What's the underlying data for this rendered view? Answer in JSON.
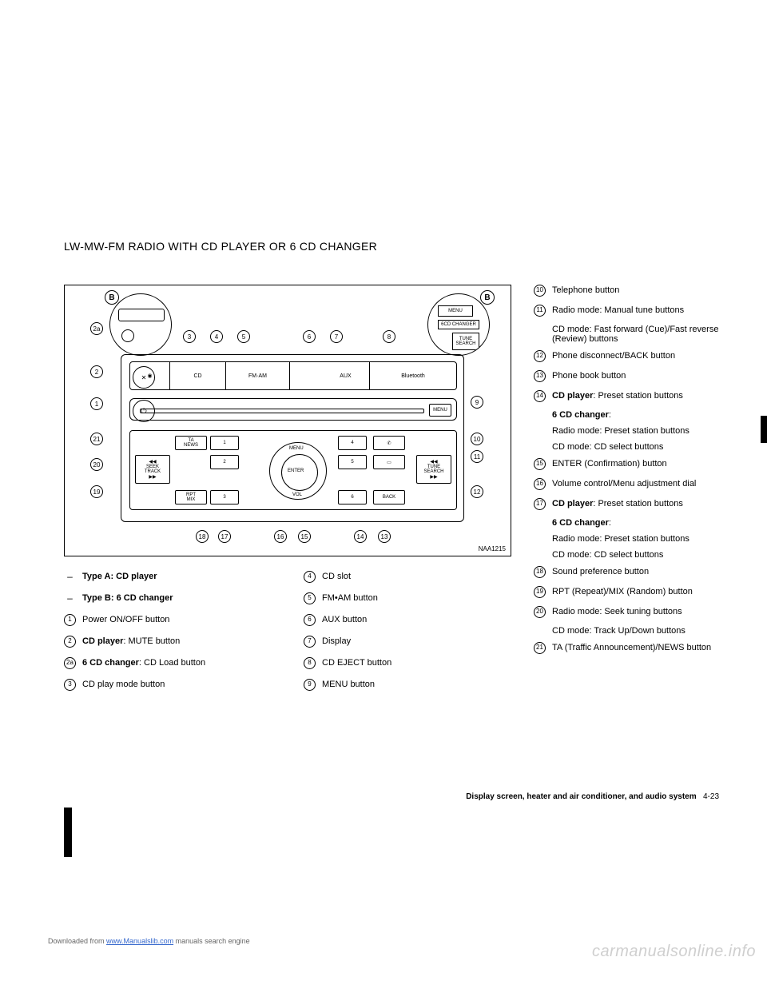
{
  "heading": "LW-MW-FM RADIO WITH CD PLAYER OR 6 CD CHANGER",
  "diagram": {
    "code": "NAA1215",
    "badge_letter": "B",
    "zoom_right": {
      "menu": "MENU",
      "changer": "6CD CHANGER",
      "tune1": "TUNE",
      "tune2": "SEARCH"
    },
    "panel": {
      "cd": "CD",
      "fmam": "FM·AM",
      "aux": "AUX",
      "bt": "Bluetooth",
      "menu": "MENU",
      "ta1": "TA",
      "ta2": "NEWS",
      "seek1": "SEEK",
      "seek2": "TRACK",
      "rpt1": "RPT",
      "rpt2": "MIX",
      "tune1": "TUNE",
      "tune2": "SEARCH",
      "back": "BACK",
      "dial_menu": "MENU",
      "dial_enter": "ENTER",
      "dial_vol": "VOL",
      "pwr": "⏻",
      "mute": "✕"
    },
    "callouts": [
      "1",
      "2",
      "2a",
      "3",
      "4",
      "5",
      "6",
      "7",
      "8",
      "9",
      "10",
      "11",
      "12",
      "13",
      "14",
      "15",
      "16",
      "17",
      "18",
      "19",
      "20",
      "21"
    ]
  },
  "legend_left": [
    {
      "marker_type": "dash",
      "marker": "–",
      "html": "<b>Type A: CD player</b>"
    },
    {
      "marker_type": "dash",
      "marker": "–",
      "html": "<b>Type B: 6 CD changer</b>"
    },
    {
      "marker_type": "circle",
      "marker": "1",
      "html": "Power ON/OFF button"
    },
    {
      "marker_type": "circle",
      "marker": "2",
      "html": "<b>CD player</b>: MUTE button"
    },
    {
      "marker_type": "circle",
      "marker": "2a",
      "html": "<b>6 CD changer</b>: CD Load button"
    },
    {
      "marker_type": "circle",
      "marker": "3",
      "html": "CD play mode button"
    }
  ],
  "legend_mid": [
    {
      "marker_type": "circle",
      "marker": "4",
      "html": "CD slot"
    },
    {
      "marker_type": "circle",
      "marker": "5",
      "html": "FM•AM button"
    },
    {
      "marker_type": "circle",
      "marker": "6",
      "html": "AUX button"
    },
    {
      "marker_type": "circle",
      "marker": "7",
      "html": "Display"
    },
    {
      "marker_type": "circle",
      "marker": "8",
      "html": "CD EJECT button"
    },
    {
      "marker_type": "circle",
      "marker": "9",
      "html": "MENU button"
    }
  ],
  "legend_right": [
    {
      "marker": "10",
      "lines": [
        "Telephone button"
      ]
    },
    {
      "marker": "11",
      "lines": [
        "Radio mode: Manual tune buttons",
        "CD mode: Fast forward (Cue)/Fast reverse (Review) buttons"
      ]
    },
    {
      "marker": "12",
      "lines": [
        "Phone disconnect/BACK button"
      ]
    },
    {
      "marker": "13",
      "lines": [
        "Phone book button"
      ]
    },
    {
      "marker": "14",
      "lines": [
        "<b>CD player</b>: Preset station buttons",
        "<b>6 CD changer</b>:",
        "Radio mode: Preset station buttons",
        "CD mode: CD select buttons"
      ]
    },
    {
      "marker": "15",
      "lines": [
        "ENTER (Confirmation) button"
      ]
    },
    {
      "marker": "16",
      "lines": [
        "Volume control/Menu adjustment dial"
      ]
    },
    {
      "marker": "17",
      "lines": [
        "<b>CD player</b>: Preset station buttons",
        "<b>6 CD changer</b>:",
        "Radio mode: Preset station buttons",
        "CD mode: CD select buttons"
      ]
    },
    {
      "marker": "18",
      "lines": [
        "Sound preference button"
      ]
    },
    {
      "marker": "19",
      "lines": [
        "RPT (Repeat)/MIX (Random) button"
      ]
    },
    {
      "marker": "20",
      "lines": [
        "Radio mode: Seek tuning buttons",
        "CD mode: Track Up/Down buttons"
      ]
    },
    {
      "marker": "21",
      "lines": [
        "TA (Traffic Announcement)/NEWS button"
      ]
    }
  ],
  "footer": {
    "section": "Display screen, heater and air conditioner, and audio system",
    "page": "4-23"
  },
  "download": {
    "prefix": "Downloaded from ",
    "link": "www.Manualslib.com",
    "suffix": " manuals search engine"
  },
  "watermark": "carmanualsonline.info"
}
